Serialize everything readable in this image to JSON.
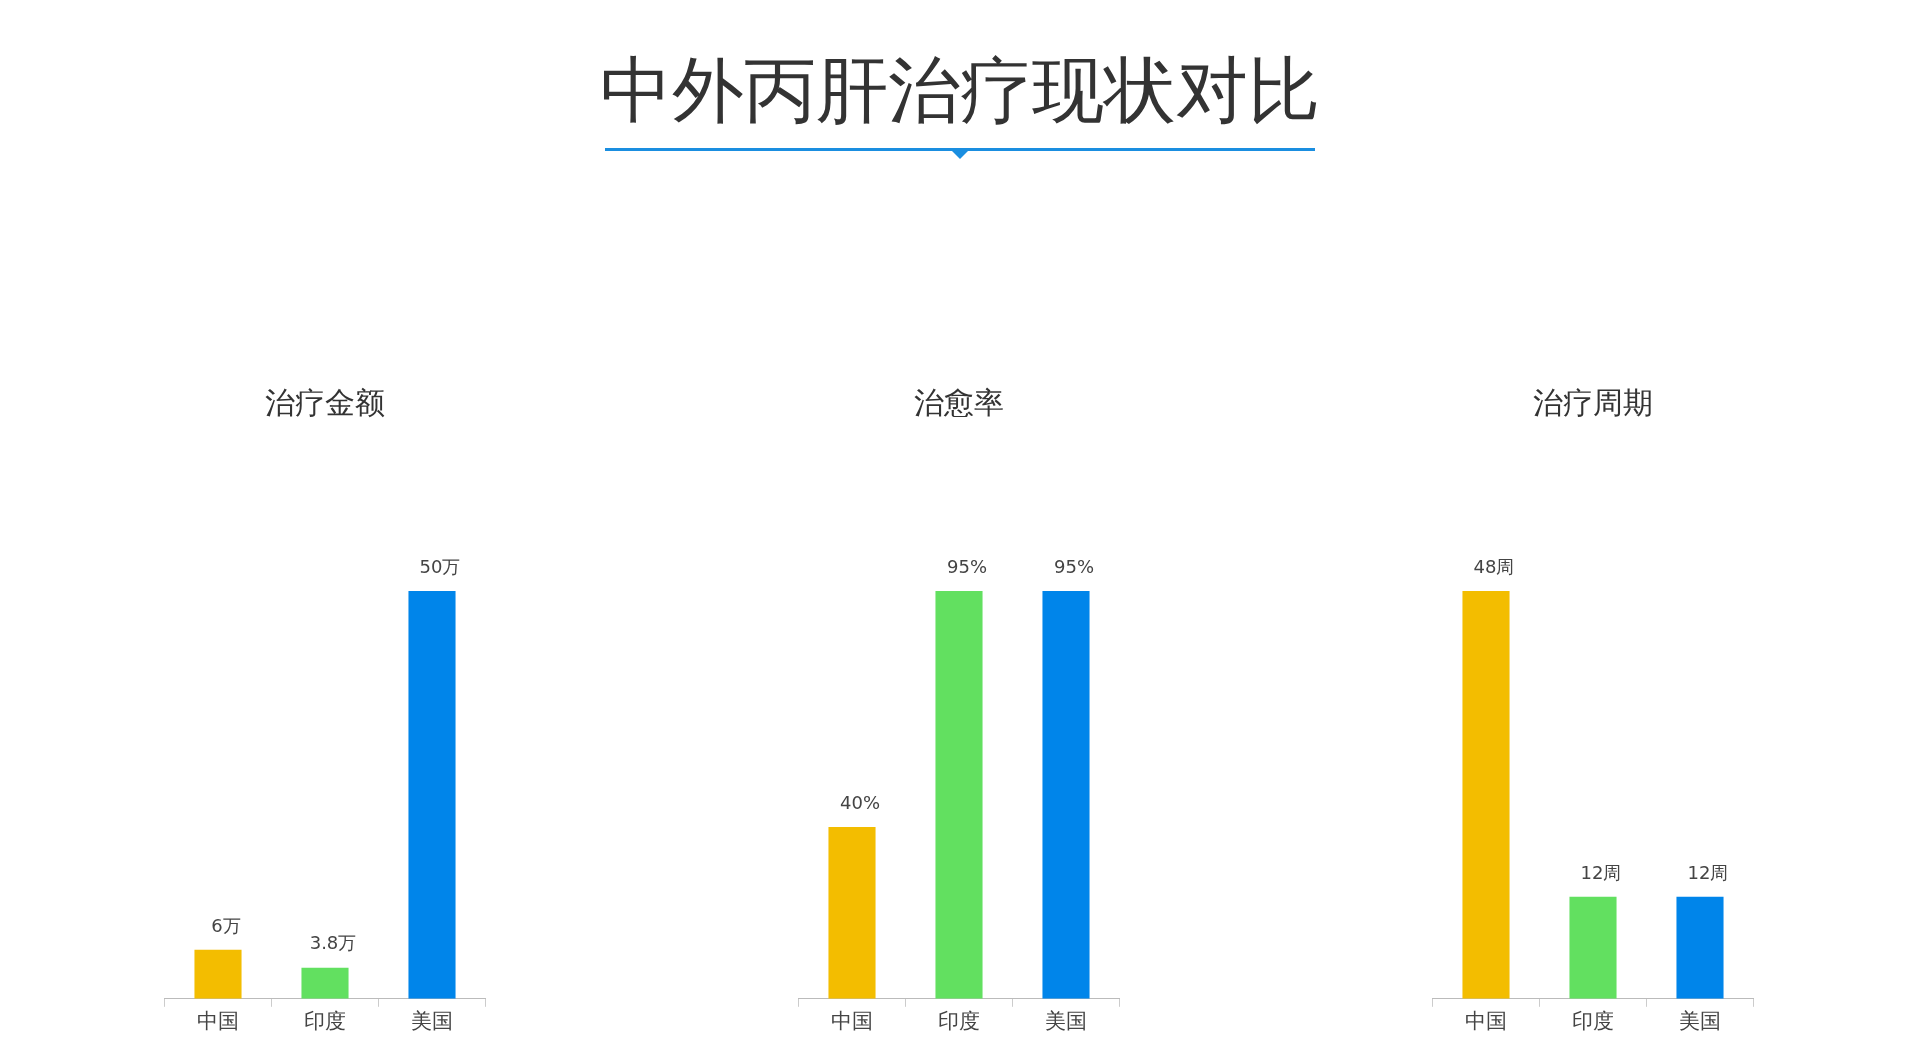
{
  "chart_data": [
    {
      "type": "other",
      "title": "中外丙肝治疗现状对比"
    },
    {
      "type": "bar",
      "subtitle": "治疗金额",
      "categories": [
        "中国",
        "印度",
        "美国"
      ],
      "values": [
        6,
        3.8,
        50
      ],
      "colors": [
        "#f3bd00",
        "#62e060",
        "#0085ea"
      ],
      "value_labels": [
        "6万",
        "3.8万",
        "50万"
      ],
      "grid": false,
      "legend": false
    },
    {
      "type": "bar",
      "subtitle": "治愈率",
      "categories": [
        "中国",
        "印度",
        "美国"
      ],
      "values": [
        40,
        95,
        95
      ],
      "colors": [
        "#f3bd00",
        "#62e060",
        "#0085ea"
      ],
      "value_labels": [
        "40%",
        "95%",
        "95%"
      ],
      "grid": false,
      "legend": false
    },
    {
      "type": "bar",
      "subtitle": "治疗周期",
      "categories": [
        "中国",
        "印度",
        "美国"
      ],
      "values": [
        48,
        12,
        12
      ],
      "colors": [
        "#f3bd00",
        "#62e060",
        "#0085ea"
      ],
      "value_labels": [
        "48周",
        "12周",
        "12周"
      ],
      "grid": false,
      "legend": false
    }
  ]
}
